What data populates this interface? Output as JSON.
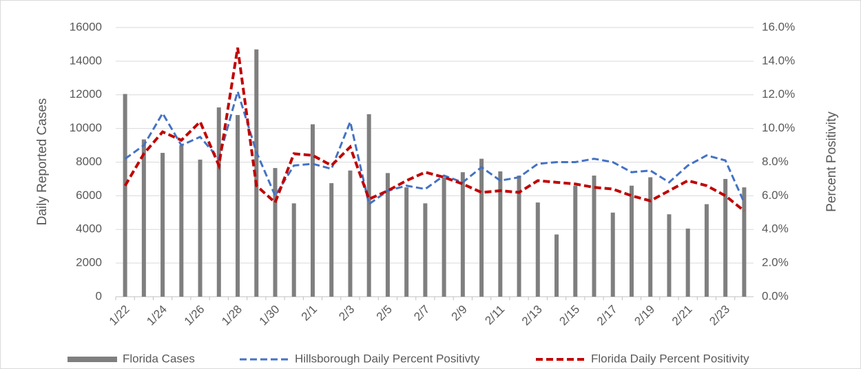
{
  "chart_data": {
    "type": "bar-line",
    "categories": [
      "1/22",
      null,
      "1/24",
      null,
      "1/26",
      null,
      "1/28",
      null,
      "1/30",
      null,
      "2/1",
      null,
      "2/3",
      null,
      "2/5",
      null,
      "2/7",
      null,
      "2/9",
      null,
      "2/11",
      null,
      "2/13",
      null,
      "2/15",
      null,
      "2/17",
      null,
      "2/19",
      null,
      "2/21",
      null,
      "2/23",
      null
    ],
    "series": [
      {
        "name": "Florida Cases",
        "type": "bar",
        "color": "#7f7f7f",
        "values": [
          12050,
          9350,
          8550,
          9000,
          8150,
          11250,
          10800,
          14700,
          7650,
          5550,
          10250,
          6750,
          7500,
          10850,
          7350,
          6500,
          5550,
          7100,
          7400,
          8200,
          7450,
          7200,
          5600,
          3700,
          6600,
          7200,
          5000,
          6600,
          7100,
          4900,
          4050,
          5500,
          7000,
          6500
        ]
      },
      {
        "name": "Hillsborough Daily Percent Positivty",
        "type": "line",
        "axis": "y2",
        "color": "#4472c4",
        "dashed": true,
        "values": [
          8.2,
          9.0,
          10.9,
          9.0,
          9.5,
          8.2,
          12.2,
          8.6,
          6.0,
          7.8,
          7.9,
          7.6,
          10.4,
          5.5,
          6.3,
          6.6,
          6.4,
          7.2,
          6.8,
          7.7,
          6.9,
          7.1,
          7.9,
          8.0,
          8.0,
          8.2,
          8.0,
          7.4,
          7.5,
          6.8,
          7.8,
          8.4,
          8.1,
          5.6
        ]
      },
      {
        "name": "Florida Daily Percent Positivity",
        "type": "line",
        "axis": "y2",
        "color": "#c00000",
        "dashed": true,
        "values": [
          6.6,
          8.5,
          9.8,
          9.3,
          10.4,
          7.8,
          14.8,
          6.6,
          5.6,
          8.5,
          8.4,
          7.8,
          8.9,
          5.8,
          6.3,
          6.9,
          7.4,
          7.1,
          6.7,
          6.2,
          6.3,
          6.2,
          6.9,
          6.8,
          6.7,
          6.5,
          6.4,
          6.0,
          5.7,
          6.3,
          6.9,
          6.6,
          6.0,
          5.1
        ]
      }
    ],
    "ylabel": "Daily Reported Cases",
    "y2label": "Percent Positivity",
    "ylim": [
      0,
      16000
    ],
    "yticks": [
      0,
      2000,
      4000,
      6000,
      8000,
      10000,
      12000,
      14000,
      16000
    ],
    "y2lim": [
      0,
      16
    ],
    "y2ticks": [
      {
        "value": 0,
        "label": "0.0%"
      },
      {
        "value": 2,
        "label": "2.0%"
      },
      {
        "value": 4,
        "label": "4.0%"
      },
      {
        "value": 6,
        "label": "6.0%"
      },
      {
        "value": 8,
        "label": "8.0%"
      },
      {
        "value": 10,
        "label": "10.0%"
      },
      {
        "value": 12,
        "label": "12.0%"
      },
      {
        "value": 14,
        "label": "14.0%"
      },
      {
        "value": 16,
        "label": "16.0%"
      }
    ],
    "grid": true,
    "legend": "bottom"
  }
}
